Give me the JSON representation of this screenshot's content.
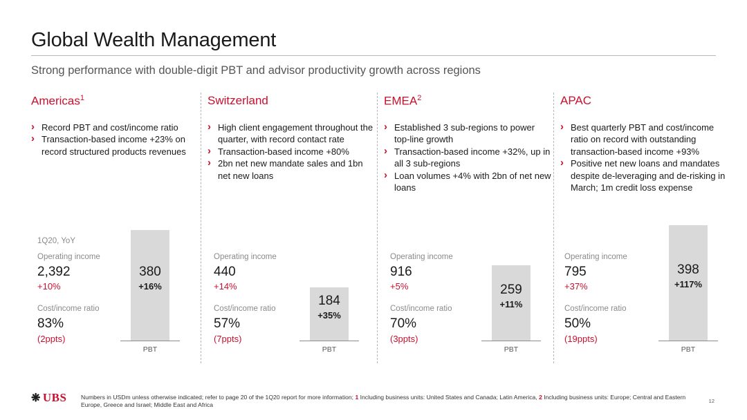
{
  "header": {
    "title": "Global Wealth Management",
    "subtitle": "Strong performance with double-digit PBT and advisor productivity growth across regions"
  },
  "period_label": "1Q20, YoY",
  "labels": {
    "operating_income": "Operating income",
    "cost_income_ratio": "Cost/income ratio",
    "pbt": "PBT"
  },
  "regions": [
    {
      "name": "Americas",
      "footnote_ref": "1",
      "bullets": [
        "Record PBT and cost/income ratio",
        "Transaction-based income +23% on record structured products revenues"
      ],
      "operating_income": "2,392",
      "operating_income_change": "+10%",
      "cost_income_ratio": "83%",
      "cost_income_change": "(2ppts)",
      "pbt": "380",
      "pbt_change": "+16%",
      "pbt_value": 380
    },
    {
      "name": "Switzerland",
      "footnote_ref": "",
      "bullets": [
        "High client engagement throughout the quarter, with record contact rate",
        "Transaction-based income +80%",
        "2bn net new mandate sales and 1bn net new loans"
      ],
      "operating_income": "440",
      "operating_income_change": "+14%",
      "cost_income_ratio": "57%",
      "cost_income_change": "(7ppts)",
      "pbt": "184",
      "pbt_change": "+35%",
      "pbt_value": 184
    },
    {
      "name": "EMEA",
      "footnote_ref": "2",
      "bullets": [
        "Established 3 sub-regions to power top-line growth",
        "Transaction-based income +32%, up in all 3 sub-regions",
        "Loan volumes +4% with 2bn of net new loans"
      ],
      "operating_income": "916",
      "operating_income_change": "+5%",
      "cost_income_ratio": "70%",
      "cost_income_change": "(3ppts)",
      "pbt": "259",
      "pbt_change": "+11%",
      "pbt_value": 259
    },
    {
      "name": "APAC",
      "footnote_ref": "",
      "bullets": [
        "Best quarterly PBT and cost/income ratio on record with outstanding transaction-based income +93%",
        "Positive net new loans and mandates despite de-leveraging and de-risking in March; 1m credit loss expense"
      ],
      "operating_income": "795",
      "operating_income_change": "+37%",
      "cost_income_ratio": "50%",
      "cost_income_change": "(19ppts)",
      "pbt": "398",
      "pbt_change": "+117%",
      "pbt_value": 398
    }
  ],
  "footer": {
    "logo_text": "UBS",
    "logo_icon": "three-keys-icon",
    "note_prefix": "Numbers in USDm unless otherwise indicated; refer to page 20 of the 1Q20 report for more information;",
    "note1_num": "1",
    "note1_text": "Including business units: United States and Canada; Latin America,",
    "note2_num": "2",
    "note2_text": "Including business units: Europe; Central and Eastern Europe, Greece and Israel; Middle East and Africa",
    "page_number": "12"
  },
  "colors": {
    "accent": "#c8102e",
    "bar": "#d9d9d9",
    "muted_text": "#8a8a8a"
  }
}
